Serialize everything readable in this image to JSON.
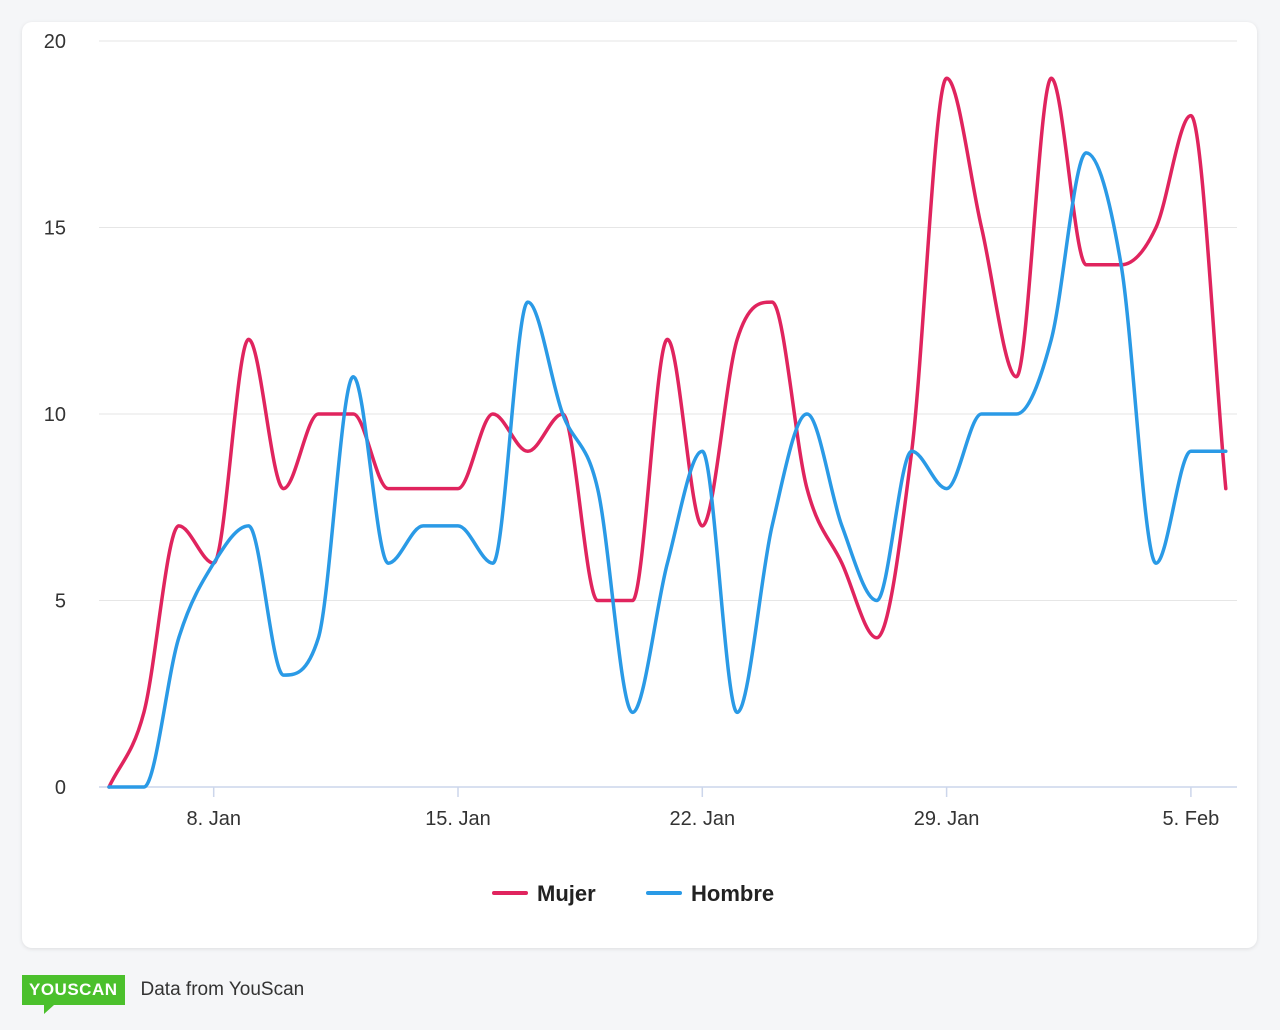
{
  "chart_data": {
    "type": "line",
    "title": "",
    "xlabel": "",
    "ylabel": "",
    "ylim": [
      0,
      20
    ],
    "yticks": [
      0,
      5,
      10,
      15,
      20
    ],
    "x_start": "5. Jan",
    "x_end": "6. Feb",
    "x": [
      "5. Jan",
      "6. Jan",
      "7. Jan",
      "8. Jan",
      "9. Jan",
      "10. Jan",
      "11. Jan",
      "12. Jan",
      "13. Jan",
      "14. Jan",
      "15. Jan",
      "16. Jan",
      "17. Jan",
      "18. Jan",
      "19. Jan",
      "20. Jan",
      "21. Jan",
      "22. Jan",
      "23. Jan",
      "24. Jan",
      "25. Jan",
      "26. Jan",
      "27. Jan",
      "28. Jan",
      "29. Jan",
      "30. Jan",
      "31. Jan",
      "1. Feb",
      "2. Feb",
      "3. Feb",
      "4. Feb",
      "5. Feb",
      "6. Feb"
    ],
    "xtick_labels": [
      "8. Jan",
      "15. Jan",
      "22. Jan",
      "29. Jan",
      "5. Feb"
    ],
    "series": [
      {
        "name": "Mujer",
        "color": "#e0245e",
        "values": [
          0,
          2,
          7,
          6,
          12,
          8,
          10,
          10,
          8,
          8,
          8,
          10,
          9,
          10,
          5,
          5,
          12,
          7,
          12,
          13,
          8,
          6,
          4,
          9,
          19,
          15,
          11,
          19,
          14,
          14,
          15,
          18,
          8
        ]
      },
      {
        "name": "Hombre",
        "color": "#2a9ae6",
        "values": [
          0,
          0,
          4,
          6,
          7,
          3,
          4,
          11,
          6,
          7,
          7,
          6,
          13,
          10,
          8,
          2,
          6,
          9,
          2,
          7,
          10,
          7,
          5,
          9,
          8,
          10,
          10,
          12,
          17,
          14,
          6,
          9,
          9
        ]
      }
    ],
    "legend_position": "bottom"
  },
  "footer": {
    "logo_text": "YOUSCAN",
    "source_text": "Data from YouScan"
  }
}
